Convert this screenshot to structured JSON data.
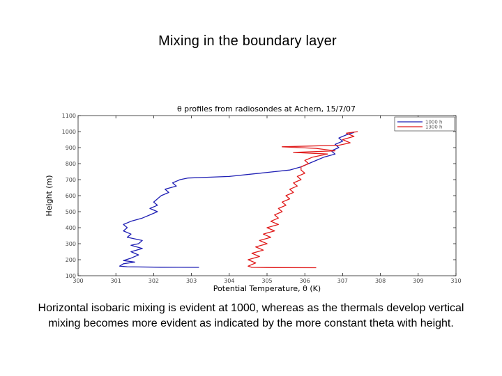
{
  "slide": {
    "title": "Mixing in the boundary layer",
    "caption": "Horizontal isobaric mixing is evident at 1000, whereas as the thermals develop vertical mixing becomes more evident as indicated by the more constant  theta with height."
  },
  "chart_data": {
    "type": "line",
    "title": "θ profiles from radiosondes at Achern, 15/7/07",
    "xlabel": "Potential Temperature, θ (K)",
    "ylabel": "Height (m)",
    "xlim": [
      300,
      310
    ],
    "ylim": [
      100,
      1100
    ],
    "xticks": [
      300,
      301,
      302,
      303,
      304,
      305,
      306,
      307,
      308,
      309,
      310
    ],
    "yticks": [
      100,
      200,
      300,
      400,
      500,
      600,
      700,
      800,
      900,
      1000,
      1100
    ],
    "grid": false,
    "legend_position": "top-right",
    "series": [
      {
        "name": "1000 h",
        "color": "#1f1fb4",
        "points": [
          [
            303.2,
            152
          ],
          [
            302.2,
            153
          ],
          [
            301.3,
            156
          ],
          [
            301.1,
            160
          ],
          [
            301.2,
            175
          ],
          [
            301.5,
            185
          ],
          [
            301.2,
            195
          ],
          [
            301.4,
            210
          ],
          [
            301.6,
            230
          ],
          [
            301.4,
            250
          ],
          [
            301.7,
            270
          ],
          [
            301.4,
            290
          ],
          [
            301.6,
            300
          ],
          [
            301.7,
            320
          ],
          [
            301.3,
            340
          ],
          [
            301.4,
            360
          ],
          [
            301.2,
            380
          ],
          [
            301.3,
            400
          ],
          [
            301.2,
            420
          ],
          [
            301.4,
            440
          ],
          [
            301.7,
            460
          ],
          [
            301.9,
            480
          ],
          [
            302.1,
            500
          ],
          [
            301.9,
            520
          ],
          [
            302.1,
            540
          ],
          [
            302.0,
            560
          ],
          [
            302.1,
            580
          ],
          [
            302.2,
            600
          ],
          [
            302.4,
            620
          ],
          [
            302.3,
            640
          ],
          [
            302.6,
            660
          ],
          [
            302.5,
            680
          ],
          [
            302.7,
            700
          ],
          [
            302.9,
            710
          ],
          [
            304.0,
            720
          ],
          [
            304.8,
            740
          ],
          [
            305.6,
            760
          ],
          [
            305.9,
            780
          ],
          [
            306.1,
            800
          ],
          [
            306.3,
            820
          ],
          [
            306.5,
            840
          ],
          [
            306.8,
            860
          ],
          [
            306.7,
            880
          ],
          [
            306.9,
            900
          ],
          [
            306.8,
            920
          ],
          [
            307.0,
            940
          ],
          [
            306.9,
            960
          ],
          [
            307.1,
            980
          ],
          [
            307.3,
            995
          ]
        ]
      },
      {
        "name": "1300 h",
        "color": "#e01a1a",
        "points": [
          [
            306.3,
            150
          ],
          [
            305.2,
            151
          ],
          [
            304.6,
            152
          ],
          [
            304.5,
            160
          ],
          [
            304.7,
            180
          ],
          [
            304.5,
            200
          ],
          [
            304.8,
            220
          ],
          [
            304.6,
            240
          ],
          [
            304.9,
            260
          ],
          [
            304.7,
            280
          ],
          [
            305.0,
            300
          ],
          [
            304.8,
            320
          ],
          [
            305.1,
            340
          ],
          [
            304.9,
            360
          ],
          [
            305.2,
            380
          ],
          [
            305.0,
            400
          ],
          [
            305.3,
            420
          ],
          [
            305.1,
            440
          ],
          [
            305.3,
            460
          ],
          [
            305.2,
            480
          ],
          [
            305.4,
            500
          ],
          [
            305.3,
            520
          ],
          [
            305.5,
            540
          ],
          [
            305.4,
            560
          ],
          [
            305.6,
            580
          ],
          [
            305.5,
            600
          ],
          [
            305.7,
            620
          ],
          [
            305.6,
            640
          ],
          [
            305.8,
            660
          ],
          [
            305.7,
            680
          ],
          [
            305.9,
            700
          ],
          [
            305.8,
            720
          ],
          [
            306.0,
            740
          ],
          [
            305.9,
            760
          ],
          [
            305.9,
            780
          ],
          [
            306.1,
            800
          ],
          [
            306.0,
            820
          ],
          [
            306.2,
            840
          ],
          [
            306.6,
            860
          ],
          [
            305.7,
            870
          ],
          [
            306.8,
            880
          ],
          [
            306.3,
            895
          ],
          [
            305.4,
            905
          ],
          [
            306.9,
            915
          ],
          [
            307.2,
            930
          ],
          [
            307.0,
            950
          ],
          [
            307.3,
            970
          ],
          [
            307.1,
            990
          ],
          [
            307.4,
            1000
          ]
        ]
      }
    ]
  }
}
